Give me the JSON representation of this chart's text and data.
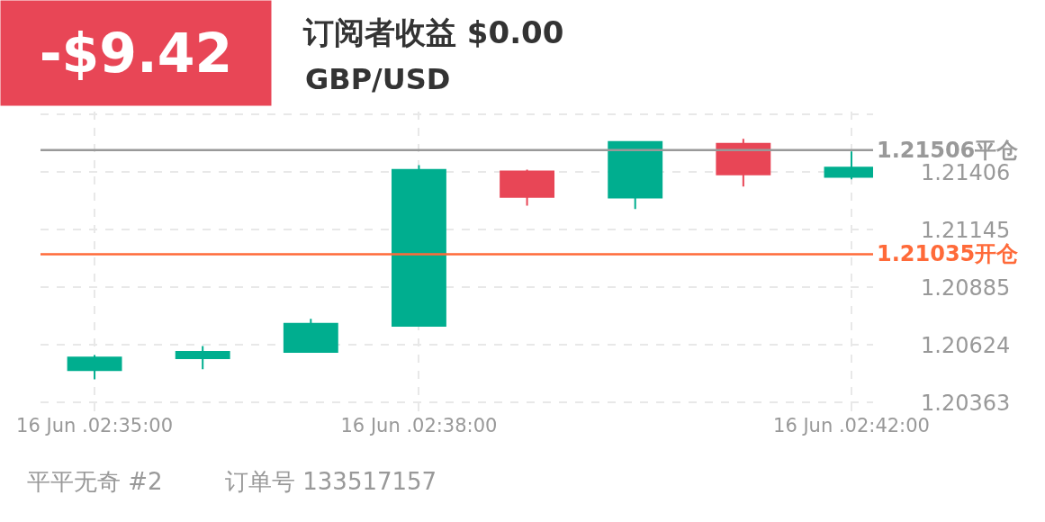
{
  "chart_data": {
    "type": "candlestick",
    "title": "订阅者收益 $0.00",
    "subtitle": "GBP/USD",
    "annotations": [
      "-$9.42",
      "平平无奇 #2",
      "订单号 133517157"
    ],
    "categories": [
      "16 Jun .02:35:00",
      null,
      null,
      "16 Jun .02:38:00",
      null,
      null,
      null,
      "16 Jun .02:42:00"
    ],
    "ohlc": [
      [
        1.2051,
        1.20579,
        1.20469,
        1.20567
      ],
      [
        1.20564,
        1.20619,
        1.20514,
        1.20593
      ],
      [
        1.20593,
        1.20742,
        1.20591,
        1.2072
      ],
      [
        1.20711,
        1.21438,
        1.20711,
        1.21416
      ],
      [
        1.21409,
        1.21417,
        1.21254,
        1.21294
      ],
      [
        1.21291,
        1.21543,
        1.21239,
        1.21543
      ],
      [
        1.21534,
        1.21557,
        1.21341,
        1.21396
      ],
      [
        1.21385,
        1.215,
        1.21374,
        1.21427
      ]
    ],
    "colors": [
      "#00ae8f",
      "#00ae8f",
      "#00ae8f",
      "#00ae8f",
      "#e84656",
      "#00ae8f",
      "#e84656",
      "#00ae8f"
    ],
    "ylim": [
      1.2032,
      1.2168
    ],
    "yticks": [
      {
        "value": 1.21667,
        "label": null
      },
      1.21406,
      1.21145,
      1.20885,
      1.20624,
      1.20363
    ],
    "ref_lines": [
      {
        "axis": "y",
        "value": 1.21506,
        "label": "1.21506平仓",
        "color": "#999999"
      },
      {
        "axis": "y",
        "value": 1.21035,
        "label": "1.21035开仓",
        "color": "#ff6a39"
      }
    ],
    "grid": true
  }
}
